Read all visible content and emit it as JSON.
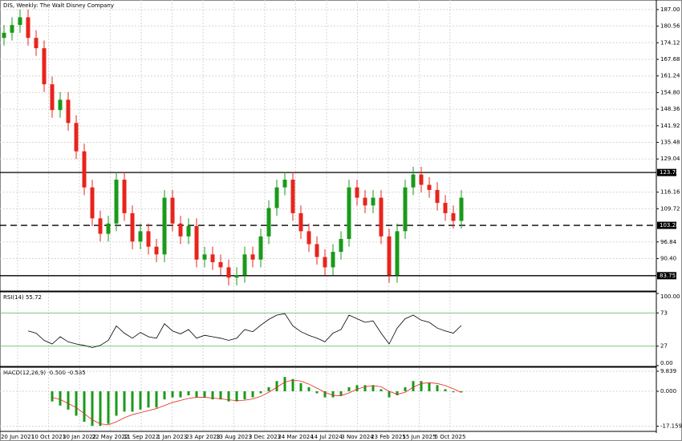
{
  "chart_data": [
    {
      "type": "candlestick",
      "title": "DIS, Weekly:  The Walt Disney Company",
      "open": [
        176,
        178,
        181,
        184,
        176,
        172,
        158,
        148,
        152,
        143,
        132,
        118,
        106,
        100,
        104,
        121,
        108,
        97,
        101,
        95,
        92,
        114,
        104,
        99,
        103,
        90,
        92,
        89,
        87,
        83,
        84,
        92,
        90,
        99,
        110,
        118,
        121,
        108,
        101,
        96,
        91,
        87,
        93,
        98,
        118,
        114,
        111,
        114,
        99,
        84,
        101,
        118,
        123,
        119,
        117,
        112,
        108,
        105
      ],
      "high": [
        181,
        184,
        187,
        187,
        179,
        175,
        161,
        155,
        155,
        146,
        135,
        121,
        109,
        107,
        124,
        124,
        111,
        104,
        104,
        98,
        117,
        117,
        107,
        106,
        106,
        95,
        95,
        92,
        90,
        87,
        95,
        95,
        102,
        113,
        121,
        124,
        124,
        111,
        104,
        99,
        94,
        96,
        101,
        121,
        121,
        117,
        117,
        117,
        102,
        104,
        121,
        126,
        126,
        122,
        120,
        115,
        111,
        117
      ],
      "low": [
        173,
        175,
        178,
        173,
        169,
        155,
        145,
        145,
        140,
        129,
        115,
        103,
        97,
        97,
        101,
        105,
        94,
        94,
        92,
        89,
        89,
        101,
        96,
        96,
        87,
        87,
        86,
        84,
        80,
        80,
        81,
        87,
        87,
        96,
        107,
        115,
        105,
        98,
        93,
        88,
        84,
        84,
        90,
        95,
        111,
        108,
        108,
        96,
        81,
        81,
        98,
        115,
        116,
        114,
        109,
        105,
        102,
        102
      ],
      "close": [
        178,
        181,
        184,
        176,
        172,
        158,
        148,
        152,
        143,
        132,
        118,
        106,
        100,
        104,
        121,
        108,
        97,
        101,
        95,
        92,
        114,
        104,
        99,
        103,
        90,
        92,
        89,
        87,
        83,
        84,
        92,
        90,
        99,
        110,
        118,
        121,
        108,
        101,
        96,
        91,
        87,
        93,
        98,
        118,
        114,
        111,
        114,
        99,
        84,
        101,
        118,
        123,
        119,
        117,
        112,
        108,
        105,
        114
      ],
      "up_color": "#1a9a1a",
      "down_color": "#e8241c",
      "ylim": [
        78.1,
        190.7
      ],
      "yticks": [
        {
          "value": 187,
          "label": "187.00"
        },
        180.56,
        174.12,
        167.68,
        161.24,
        {
          "value": 154.8,
          "label": "154.80"
        },
        148.36,
        141.92,
        135.48,
        129.04,
        116.16,
        109.72,
        96.84,
        {
          "value": 90.4,
          "label": "90.40"
        }
      ],
      "levels": [
        {
          "value": 123.78,
          "dashed": false
        },
        {
          "value": 103.28,
          "dashed": true
        },
        {
          "value": 83.75,
          "dashed": false
        }
      ],
      "x_labels": [
        "20 Jun 2021",
        "10 Oct 2021",
        "30 Jan 2022",
        "22 May 2022",
        "11 Sep 2022",
        "1 Jan 2023",
        "23 Apr 2023",
        "13 Aug 2023",
        "3 Dec 2023",
        "24 Mar 2024",
        "14 Jul 2024",
        "3 Nov 2024",
        "23 Feb 2025",
        "15 Jun 2025",
        "5 Oct 2025"
      ],
      "grid": true
    },
    {
      "type": "line",
      "title": "RSI(14) 55.72",
      "color": "#000000",
      "grid_color": "#6cbf6c",
      "values": [
        null,
        null,
        null,
        48,
        45,
        35,
        30,
        40,
        33,
        30,
        28,
        25,
        28,
        35,
        55,
        45,
        38,
        46,
        40,
        38,
        58,
        48,
        44,
        50,
        38,
        42,
        40,
        38,
        35,
        38,
        50,
        47,
        56,
        64,
        70,
        72,
        55,
        47,
        42,
        38,
        33,
        45,
        50,
        70,
        65,
        60,
        62,
        45,
        30,
        52,
        65,
        70,
        63,
        60,
        52,
        48,
        45,
        55.72
      ],
      "ylim": [
        0,
        100
      ],
      "yticks": [
        {
          "value": 100,
          "label": "100.00"
        },
        73,
        27,
        {
          "value": 0,
          "label": "0.00"
        }
      ]
    },
    {
      "type": "bar",
      "title": "MACD(12,26,9) -0.500 -0.585",
      "color": "#1a9a1a",
      "signal_color": "#e8241c",
      "values": [
        null,
        null,
        null,
        null,
        null,
        null,
        -5,
        -7,
        -9,
        -12,
        -15,
        -17,
        -17,
        -16,
        -12,
        -10,
        -10,
        -9,
        -8,
        -8,
        -4,
        -3,
        -3,
        -2,
        -3,
        -3,
        -4,
        -4,
        -5,
        -5,
        -4,
        -3,
        -1,
        2,
        5,
        7,
        6,
        4,
        2,
        -1,
        -3,
        -3,
        -2,
        2,
        3,
        3,
        3,
        1,
        -3,
        -2,
        2,
        5,
        5,
        4,
        3,
        1,
        -0.5,
        -0.5
      ],
      "signal": [
        null,
        null,
        null,
        null,
        null,
        null,
        -3,
        -4,
        -6,
        -8,
        -11,
        -14,
        -16,
        -16.5,
        -15,
        -13,
        -11.5,
        -10.5,
        -9.5,
        -8.5,
        -7,
        -5.5,
        -4.5,
        -3.5,
        -3,
        -3,
        -3.3,
        -3.7,
        -4.2,
        -4.6,
        -4.4,
        -3.8,
        -2.5,
        -0.5,
        2,
        4.5,
        5.5,
        5,
        3.5,
        1.5,
        -0.5,
        -2,
        -2.2,
        -0.8,
        1,
        2.2,
        2.8,
        2.2,
        0,
        -1.5,
        -0.5,
        2,
        3.8,
        4.2,
        3.8,
        2.8,
        1.2,
        -0.585
      ],
      "ylim": [
        -19.3,
        11.4
      ],
      "yticks": [
        9.839,
        {
          "value": 0,
          "label": "0.000"
        },
        -17.159
      ]
    }
  ]
}
